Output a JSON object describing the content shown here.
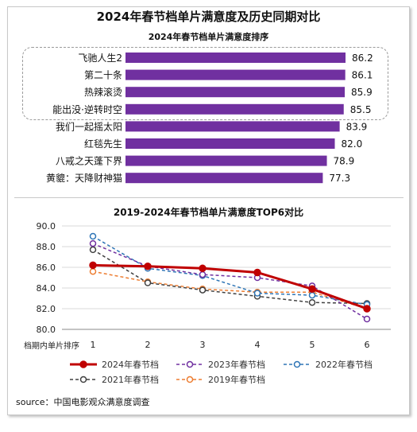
{
  "title": "2024年春节档单片满意度及历史同期对比",
  "source": "source：中国电影观众满意度调查",
  "chart_data": [
    {
      "type": "bar",
      "title": "2024年春节档单片满意度排序",
      "categories": [
        "飞驰人生2",
        "第二十条",
        "热辣滚烫",
        "能出没·逆转时空",
        "我们一起摇太阳",
        "红毯先生",
        "八戒之天蓬下界",
        "黄貔：天降财神猫"
      ],
      "values": [
        86.2,
        86.1,
        85.9,
        85.5,
        83.9,
        82.0,
        78.9,
        77.3
      ],
      "value_labels": [
        "86.2",
        "86.1",
        "85.9",
        "85.5",
        "83.9",
        "82.0",
        "78.9",
        "77.3"
      ],
      "bar_color": "#7030a0",
      "highlight_count": 4
    },
    {
      "type": "line",
      "title": "2019-2024年春节档单片满意度TOP6对比",
      "xlabel": "档期内单片排序",
      "x": [
        1,
        2,
        3,
        4,
        5,
        6
      ],
      "ylim": [
        80.0,
        90.0
      ],
      "yticks": [
        "90.0",
        "88.0",
        "86.0",
        "84.0",
        "82.0",
        "80.0"
      ],
      "series": [
        {
          "name": "2024年春节档",
          "color": "#c00000",
          "style": "solid",
          "values": [
            86.2,
            86.1,
            85.9,
            85.5,
            83.9,
            82.0
          ]
        },
        {
          "name": "2023年春节档",
          "color": "#7030a0",
          "style": "dashed",
          "values": [
            88.3,
            86.1,
            85.3,
            85.0,
            84.2,
            81.0
          ]
        },
        {
          "name": "2022年春节档",
          "color": "#2e75b6",
          "style": "dashed",
          "values": [
            89.0,
            85.9,
            85.2,
            83.5,
            83.3,
            82.4
          ]
        },
        {
          "name": "2021年春节档",
          "color": "#404040",
          "style": "dashed",
          "values": [
            87.7,
            84.5,
            83.8,
            83.2,
            82.6,
            82.5
          ]
        },
        {
          "name": "2019年春节档",
          "color": "#ed7d31",
          "style": "dashed",
          "values": [
            85.6,
            84.6,
            83.9,
            83.6,
            83.6,
            82.0
          ]
        }
      ],
      "legend": "bottom"
    }
  ]
}
